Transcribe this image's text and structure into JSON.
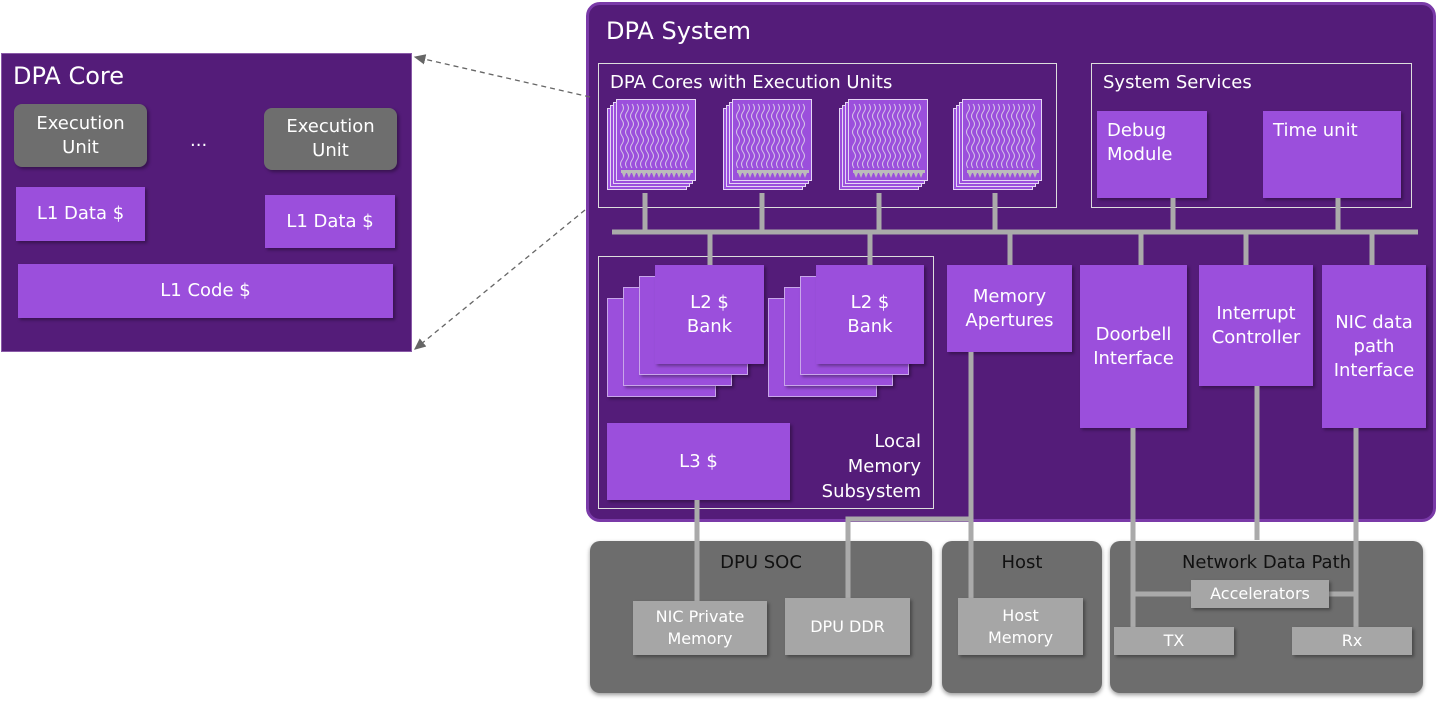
{
  "dpa_core": {
    "title": "DPA Core",
    "exec_unit_1": "Execution Unit",
    "exec_unit_2": "Execution Unit",
    "ellipsis": "...",
    "l1_data_1": "L1 Data $",
    "l1_data_2": "L1 Data $",
    "l1_code": "L1 Code $"
  },
  "dpa_system": {
    "title": "DPA System",
    "cores": {
      "title": "DPA Cores with Execution Units",
      "count": 4
    },
    "services": {
      "title": "System Services",
      "debug": "Debug Module",
      "time": "Time unit"
    },
    "local_memory": {
      "title": "Local Memory Subsystem",
      "l2_bank_1": "L2 $ Bank",
      "l2_bank_2": "L2 $ Bank",
      "l3": "L3 $"
    },
    "memory_apertures": "Memory Apertures",
    "doorbell": "Doorbell Interface",
    "interrupt": "Interrupt Controller",
    "nic_data": "NIC data path Interface"
  },
  "dpu_soc": {
    "title": "DPU SOC",
    "nic_private": "NIC Private Memory",
    "dpu_ddr": "DPU DDR"
  },
  "host": {
    "title": "Host",
    "host_memory": "Host Memory"
  },
  "network": {
    "title": "Network Data Path",
    "accelerators": "Accelerators",
    "tx": "TX",
    "rx": "Rx"
  },
  "colors": {
    "panel": "#541c79",
    "block": "#9b4fdc",
    "grey_panel": "#6d6d6d",
    "light_grey": "#a6a6a6"
  }
}
